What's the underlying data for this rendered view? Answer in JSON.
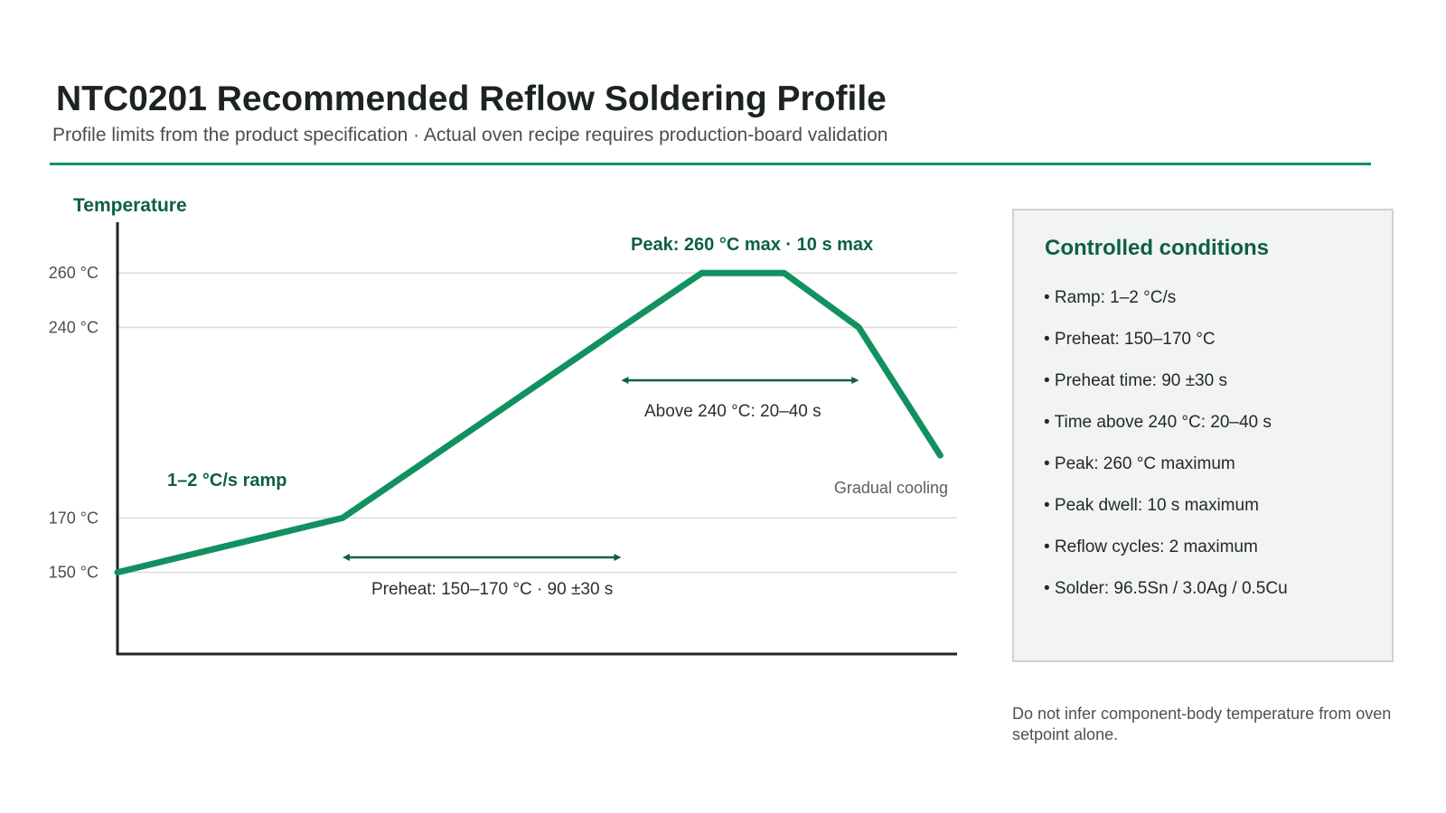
{
  "header": {
    "title": "NTC0201 Recommended Reflow Soldering Profile",
    "subtitle": "Profile limits from the product specification · Actual oven recipe requires production-board validation"
  },
  "colors": {
    "accent": "#11915f",
    "dark_green": "#0e5f45",
    "gridline": "#d9dddb",
    "panel_bg": "#f1f4f2"
  },
  "chart_data": {
    "type": "line",
    "ylabel": "Temperature",
    "xlabel": "",
    "y_ticks": [
      {
        "value": 150,
        "label": "150 °C"
      },
      {
        "value": 170,
        "label": "170 °C"
      },
      {
        "value": 240,
        "label": "240 °C"
      },
      {
        "value": 260,
        "label": "260 °C"
      }
    ],
    "ylim": [
      120,
      278
    ],
    "xlim": [
      0,
      100
    ],
    "grid": true,
    "series": [
      {
        "points": [
          {
            "x": 0,
            "y": 150
          },
          {
            "x": 26.8,
            "y": 170
          },
          {
            "x": 60,
            "y": 240
          },
          {
            "x": 69.6,
            "y": 260
          },
          {
            "x": 79.4,
            "y": 260
          },
          {
            "x": 88.3,
            "y": 240
          },
          {
            "x": 98,
            "y": 193
          }
        ]
      }
    ],
    "annotations": {
      "peak": "Peak: 260 °C max · 10 s max",
      "ramp": "1–2 °C/s ramp",
      "above": "Above 240 °C: 20–40 s",
      "preheat": "Preheat: 150–170 °C · 90 ±30 s",
      "cooling": "Gradual cooling"
    },
    "spans": {
      "above": {
        "x_start": 60,
        "x_end": 88.3
      },
      "preheat": {
        "x_start": 26.8,
        "x_end": 60
      }
    }
  },
  "panel": {
    "title": "Controlled conditions",
    "items": [
      "• Ramp: 1–2 °C/s",
      "• Preheat: 150–170 °C",
      "• Preheat time: 90 ±30 s",
      "• Time above 240 °C: 20–40 s",
      "• Peak: 260 °C maximum",
      "• Peak dwell: 10 s maximum",
      "• Reflow cycles: 2 maximum",
      "• Solder: 96.5Sn / 3.0Ag / 0.5Cu"
    ]
  },
  "footnote": "Do not infer component-body temperature from oven setpoint alone."
}
